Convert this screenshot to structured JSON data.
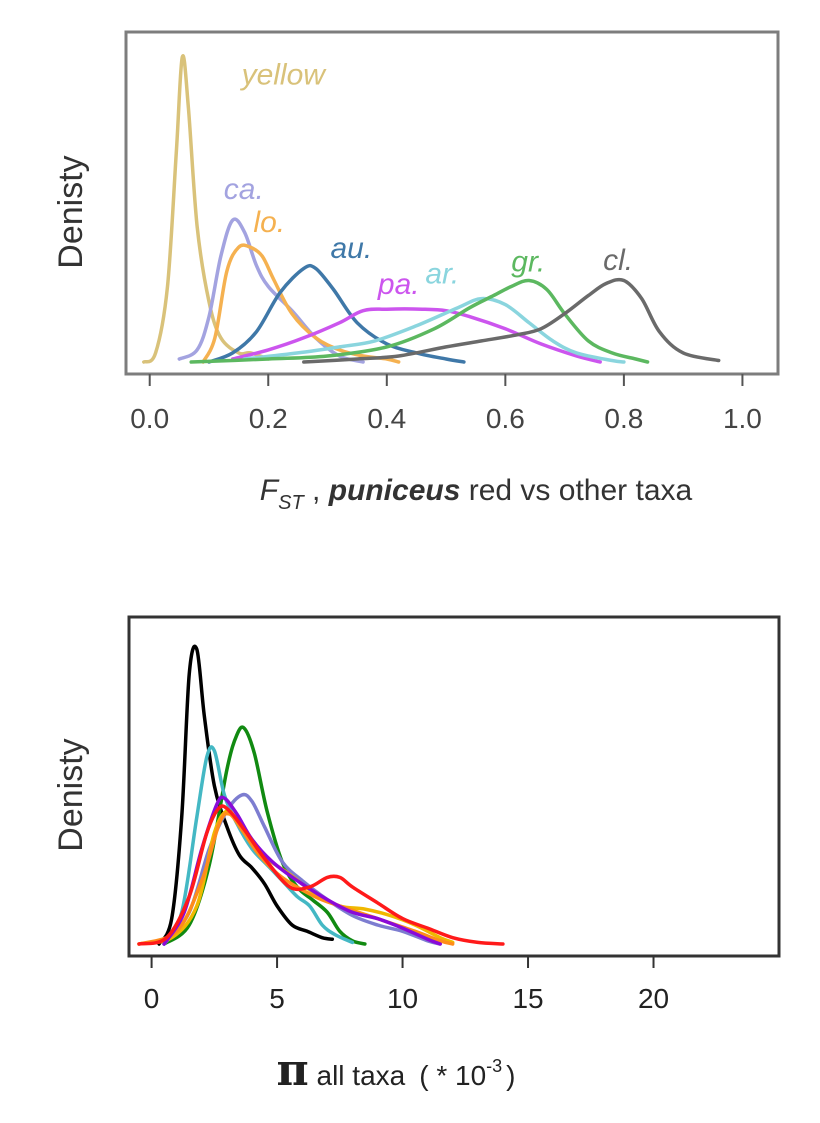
{
  "chart_data": [
    {
      "type": "line",
      "subtype": "density",
      "ylabel": "Denisty",
      "xlabel": {
        "f": "F",
        "sub": "ST",
        "sep": " , ",
        "italic_part": "puniceus",
        "rest": " red vs other taxa"
      },
      "xlim": [
        -0.04,
        1.06
      ],
      "ylim": [
        0,
        10.6
      ],
      "xticks": [
        0.0,
        0.2,
        0.4,
        0.6,
        0.8,
        1.0
      ],
      "xtick_labels": [
        "0.0",
        "0.2",
        "0.4",
        "0.6",
        "0.8",
        "1.0"
      ],
      "grid": false,
      "series": [
        {
          "name": "yellow",
          "label": "yellow",
          "color": "#d9c27a",
          "points": [
            [
              -0.01,
              0
            ],
            [
              0.01,
              0.3
            ],
            [
              0.03,
              2.5
            ],
            [
              0.045,
              7
            ],
            [
              0.055,
              10.1
            ],
            [
              0.065,
              8.5
            ],
            [
              0.08,
              4.5
            ],
            [
              0.1,
              2
            ],
            [
              0.12,
              0.8
            ],
            [
              0.15,
              0.3
            ],
            [
              0.17,
              0.3
            ],
            [
              0.2,
              0.1
            ]
          ],
          "label_at": [
            0.155,
            9.2
          ]
        },
        {
          "name": "ca.",
          "label": "ca.",
          "color": "#a3a3e0",
          "points": [
            [
              0.05,
              0.1
            ],
            [
              0.08,
              0.4
            ],
            [
              0.1,
              1.5
            ],
            [
              0.12,
              3.5
            ],
            [
              0.14,
              4.7
            ],
            [
              0.16,
              4.3
            ],
            [
              0.18,
              3.2
            ],
            [
              0.2,
              2.5
            ],
            [
              0.24,
              1.7
            ],
            [
              0.28,
              0.8
            ],
            [
              0.32,
              0.2
            ],
            [
              0.36,
              0
            ]
          ],
          "label_at": [
            0.125,
            5.4
          ]
        },
        {
          "name": "lo.",
          "label": "lo.",
          "color": "#f5b150",
          "points": [
            [
              0.09,
              0
            ],
            [
              0.11,
              0.8
            ],
            [
              0.13,
              3
            ],
            [
              0.15,
              3.8
            ],
            [
              0.17,
              3.8
            ],
            [
              0.19,
              3.5
            ],
            [
              0.21,
              2.7
            ],
            [
              0.24,
              1.6
            ],
            [
              0.28,
              0.8
            ],
            [
              0.32,
              0.4
            ],
            [
              0.36,
              0.2
            ],
            [
              0.4,
              0.1
            ],
            [
              0.42,
              0
            ]
          ],
          "label_at": [
            0.175,
            4.3
          ]
        },
        {
          "name": "au.",
          "label": "au.",
          "color": "#3f78a8",
          "points": [
            [
              0.1,
              0
            ],
            [
              0.14,
              0.3
            ],
            [
              0.18,
              1
            ],
            [
              0.22,
              2.3
            ],
            [
              0.26,
              3.1
            ],
            [
              0.28,
              3.1
            ],
            [
              0.31,
              2.4
            ],
            [
              0.35,
              1.3
            ],
            [
              0.4,
              0.6
            ],
            [
              0.45,
              0.3
            ],
            [
              0.5,
              0.1
            ],
            [
              0.53,
              0
            ]
          ],
          "label_at": [
            0.305,
            3.45
          ]
        },
        {
          "name": "pa.",
          "label": "pa.",
          "color": "#cc55ee",
          "points": [
            [
              0.14,
              0.1
            ],
            [
              0.2,
              0.4
            ],
            [
              0.26,
              0.8
            ],
            [
              0.32,
              1.3
            ],
            [
              0.36,
              1.7
            ],
            [
              0.4,
              1.75
            ],
            [
              0.46,
              1.75
            ],
            [
              0.5,
              1.7
            ],
            [
              0.54,
              1.5
            ],
            [
              0.6,
              1.1
            ],
            [
              0.66,
              0.6
            ],
            [
              0.72,
              0.2
            ],
            [
              0.76,
              0
            ]
          ],
          "label_at": [
            0.385,
            2.25
          ]
        },
        {
          "name": "ar.",
          "label": "ar.",
          "color": "#8ad5de",
          "points": [
            [
              0.16,
              0.1
            ],
            [
              0.25,
              0.3
            ],
            [
              0.32,
              0.5
            ],
            [
              0.38,
              0.7
            ],
            [
              0.45,
              1.2
            ],
            [
              0.52,
              1.8
            ],
            [
              0.56,
              2.1
            ],
            [
              0.6,
              1.9
            ],
            [
              0.64,
              1.3
            ],
            [
              0.68,
              0.7
            ],
            [
              0.72,
              0.3
            ],
            [
              0.78,
              0.05
            ],
            [
              0.8,
              0
            ]
          ],
          "label_at": [
            0.465,
            2.6
          ]
        },
        {
          "name": "gr.",
          "label": "gr.",
          "color": "#5cb860",
          "points": [
            [
              0.07,
              0
            ],
            [
              0.2,
              0.1
            ],
            [
              0.3,
              0.2
            ],
            [
              0.4,
              0.5
            ],
            [
              0.48,
              1.1
            ],
            [
              0.54,
              1.8
            ],
            [
              0.58,
              2.2
            ],
            [
              0.61,
              2.5
            ],
            [
              0.64,
              2.7
            ],
            [
              0.67,
              2.4
            ],
            [
              0.7,
              1.6
            ],
            [
              0.74,
              0.7
            ],
            [
              0.78,
              0.3
            ],
            [
              0.82,
              0.1
            ],
            [
              0.84,
              0
            ]
          ],
          "label_at": [
            0.61,
            3.0
          ]
        },
        {
          "name": "cl.",
          "label": "cl.",
          "color": "#6a6a6a",
          "points": [
            [
              0.26,
              0
            ],
            [
              0.35,
              0.1
            ],
            [
              0.42,
              0.2
            ],
            [
              0.5,
              0.5
            ],
            [
              0.56,
              0.7
            ],
            [
              0.62,
              0.9
            ],
            [
              0.66,
              1.1
            ],
            [
              0.7,
              1.6
            ],
            [
              0.74,
              2.2
            ],
            [
              0.77,
              2.6
            ],
            [
              0.8,
              2.7
            ],
            [
              0.83,
              2.1
            ],
            [
              0.86,
              1
            ],
            [
              0.9,
              0.3
            ],
            [
              0.96,
              0.05
            ]
          ],
          "label_at": [
            0.765,
            3.05
          ]
        }
      ]
    },
    {
      "type": "line",
      "subtype": "density",
      "ylabel": "Denisty",
      "xlabel": {
        "symbol": "π",
        "text": " all taxa",
        "paren_open": "( * 10",
        "sup": "-3",
        "paren_close": ")"
      },
      "xlim": [
        -0.9,
        25
      ],
      "ylim": [
        0,
        10
      ],
      "xticks": [
        0,
        5,
        10,
        15,
        20
      ],
      "xtick_labels": [
        "0",
        "5",
        "10",
        "15",
        "20"
      ],
      "grid": false,
      "series": [
        {
          "name": "black",
          "color": "#000000",
          "points": [
            [
              0.3,
              0
            ],
            [
              0.8,
              0.8
            ],
            [
              1.2,
              4
            ],
            [
              1.5,
              8.5
            ],
            [
              1.8,
              9.3
            ],
            [
              2.1,
              7.2
            ],
            [
              2.5,
              5
            ],
            [
              3,
              3.7
            ],
            [
              3.5,
              2.8
            ],
            [
              4,
              2.4
            ],
            [
              4.5,
              1.9
            ],
            [
              5,
              1.2
            ],
            [
              5.6,
              0.6
            ],
            [
              6.2,
              0.4
            ],
            [
              6.8,
              0.2
            ],
            [
              7.2,
              0.15
            ]
          ]
        },
        {
          "name": "green",
          "color": "#118a11",
          "points": [
            [
              0.5,
              0
            ],
            [
              1.5,
              0.6
            ],
            [
              2.3,
              2.5
            ],
            [
              3,
              5.5
            ],
            [
              3.4,
              6.6
            ],
            [
              3.7,
              6.8
            ],
            [
              4.1,
              6
            ],
            [
              4.6,
              4.2
            ],
            [
              5.2,
              2.6
            ],
            [
              5.8,
              1.8
            ],
            [
              6.4,
              1.4
            ],
            [
              7,
              1
            ],
            [
              7.5,
              0.4
            ],
            [
              8,
              0.1
            ],
            [
              8.5,
              0
            ]
          ]
        },
        {
          "name": "teal",
          "color": "#44b8c4",
          "points": [
            [
              0.5,
              0
            ],
            [
              1.2,
              1
            ],
            [
              1.8,
              4
            ],
            [
              2.2,
              5.9
            ],
            [
              2.5,
              6.1
            ],
            [
              2.9,
              4.7
            ],
            [
              3.4,
              3.8
            ],
            [
              4,
              3
            ],
            [
              4.6,
              2.5
            ],
            [
              5.2,
              2
            ],
            [
              5.8,
              1.5
            ],
            [
              6.3,
              1.2
            ],
            [
              6.8,
              0.6
            ],
            [
              7.3,
              0.3
            ],
            [
              8,
              0.05
            ]
          ]
        },
        {
          "name": "slateblue",
          "color": "#7d7dd0",
          "points": [
            [
              0.5,
              0
            ],
            [
              1.5,
              1
            ],
            [
              2.3,
              3
            ],
            [
              3,
              4.2
            ],
            [
              3.6,
              4.7
            ],
            [
              4,
              4.5
            ],
            [
              4.5,
              3.7
            ],
            [
              5.2,
              2.6
            ],
            [
              6,
              2
            ],
            [
              7,
              1.4
            ],
            [
              8,
              0.9
            ],
            [
              9,
              0.6
            ],
            [
              10,
              0.4
            ],
            [
              11,
              0.1
            ],
            [
              11.5,
              0
            ]
          ]
        },
        {
          "name": "gold",
          "color": "#f0b800",
          "points": [
            [
              -0.5,
              0
            ],
            [
              0.8,
              0.2
            ],
            [
              1.8,
              1.2
            ],
            [
              2.5,
              3.5
            ],
            [
              3,
              4.2
            ],
            [
              3.4,
              3.9
            ],
            [
              4,
              3.3
            ],
            [
              4.6,
              2.7
            ],
            [
              5.5,
              2.2
            ],
            [
              6.5,
              1.6
            ],
            [
              7.5,
              1.2
            ],
            [
              8.5,
              1.1
            ],
            [
              9.5,
              0.9
            ],
            [
              10.5,
              0.6
            ],
            [
              11.5,
              0.2
            ],
            [
              12,
              0.05
            ]
          ]
        },
        {
          "name": "orange",
          "color": "#ff8c1a",
          "points": [
            [
              -0.5,
              0
            ],
            [
              1,
              0.4
            ],
            [
              2,
              2
            ],
            [
              2.7,
              3.8
            ],
            [
              3.1,
              4.1
            ],
            [
              3.6,
              3.6
            ],
            [
              4.3,
              2.8
            ],
            [
              5.2,
              2.1
            ],
            [
              6.5,
              1.5
            ],
            [
              7.5,
              1.2
            ],
            [
              9,
              0.8
            ],
            [
              10.5,
              0.4
            ],
            [
              11.5,
              0.1
            ],
            [
              12,
              0
            ]
          ]
        },
        {
          "name": "purple",
          "color": "#8a0ad8",
          "points": [
            [
              0.5,
              0
            ],
            [
              1.3,
              1
            ],
            [
              2,
              3
            ],
            [
              2.6,
              4.4
            ],
            [
              2.9,
              4.6
            ],
            [
              3.4,
              4.1
            ],
            [
              4,
              3.3
            ],
            [
              4.8,
              2.6
            ],
            [
              5.8,
              2
            ],
            [
              7,
              1.4
            ],
            [
              8,
              1
            ],
            [
              9,
              0.8
            ],
            [
              10,
              0.5
            ],
            [
              11,
              0.15
            ],
            [
              11.5,
              0
            ]
          ]
        },
        {
          "name": "red",
          "color": "#ff1a1a",
          "points": [
            [
              -0.5,
              0
            ],
            [
              0.6,
              0.2
            ],
            [
              1.5,
              1.5
            ],
            [
              2.2,
              3.5
            ],
            [
              2.7,
              4.3
            ],
            [
              3.1,
              4.2
            ],
            [
              3.7,
              3.6
            ],
            [
              4.5,
              2.7
            ],
            [
              5.5,
              1.8
            ],
            [
              6.3,
              1.8
            ],
            [
              7,
              2.1
            ],
            [
              7.5,
              2.1
            ],
            [
              8,
              1.8
            ],
            [
              9,
              1.3
            ],
            [
              10,
              0.8
            ],
            [
              11,
              0.5
            ],
            [
              12,
              0.2
            ],
            [
              13,
              0.05
            ],
            [
              14,
              0
            ]
          ]
        }
      ]
    }
  ]
}
